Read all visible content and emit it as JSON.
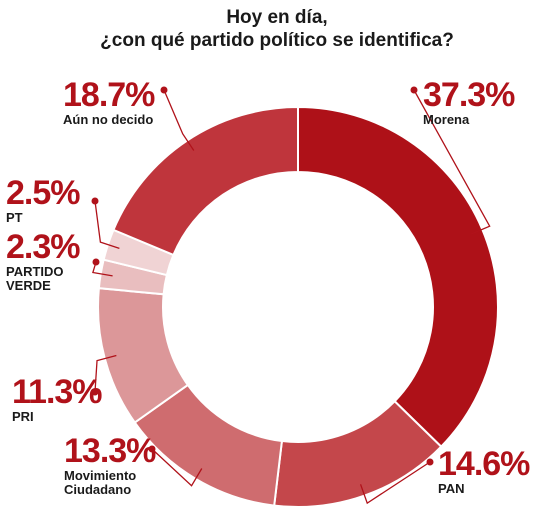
{
  "title_line1": "Hoy en día,",
  "title_line2": "¿con qué partido político se identifica?",
  "chart_data": {
    "type": "pie",
    "title": "Hoy en día, ¿con qué partido político se identifica?",
    "categories": [
      "Morena",
      "PAN",
      "Movimiento Ciudadano",
      "PRI",
      "PARTIDO VERDE",
      "PT",
      "Aún no decido"
    ],
    "values": [
      37.3,
      14.6,
      13.3,
      11.3,
      2.3,
      2.5,
      18.7
    ],
    "value_labels": [
      "37.3%",
      "14.6%",
      "13.3%",
      "11.3%",
      "2.3%",
      "2.5%",
      "18.7%"
    ],
    "colors": [
      "#ae1118",
      "#c4474b",
      "#cf6c6f",
      "#dc9799",
      "#e9bebf",
      "#f0d3d4",
      "#bf353c"
    ],
    "donut": true,
    "legend": "none"
  },
  "labels": {
    "morena": {
      "pct": "37.3%",
      "name": "Morena"
    },
    "pan": {
      "pct": "14.6%",
      "name": "PAN"
    },
    "mc": {
      "pct": "13.3%",
      "name1": "Movimiento",
      "name2": "Ciudadano"
    },
    "pri": {
      "pct": "11.3%",
      "name": "PRI"
    },
    "verde": {
      "pct": "2.3%",
      "name1": "PARTIDO",
      "name2": "VERDE"
    },
    "pt": {
      "pct": "2.5%",
      "name": "PT"
    },
    "nodecido": {
      "pct": "18.7%",
      "name": "Aún no decido"
    }
  }
}
